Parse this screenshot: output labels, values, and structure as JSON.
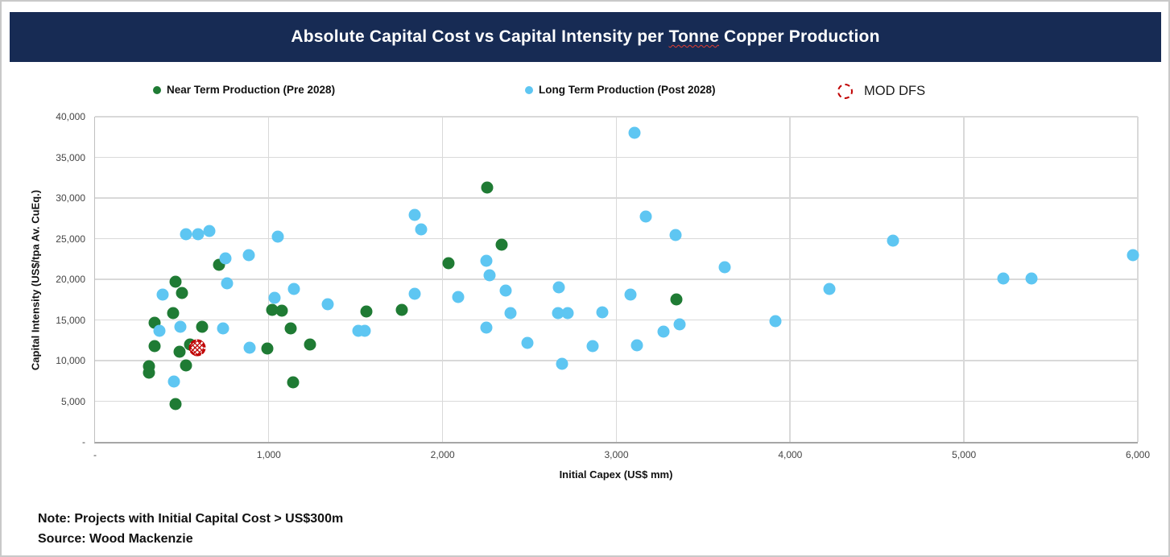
{
  "header": {
    "title_prefix": "Absolute Capital Cost vs Capital Intensity per ",
    "title_highlight": "Tonne",
    "title_suffix": " Copper Production"
  },
  "legend": {
    "near_term_label": "Near Term Production (Pre 2028)",
    "long_term_label": "Long Term Production (Post 2028)",
    "mod_dfs_label": "MOD DFS"
  },
  "colors": {
    "banner_navy": "#172b54",
    "near_term_green": "#1f7b34",
    "long_term_blue": "#5ec6f2",
    "mod_dfs_red": "#c00000",
    "gridline_gray": "#d9d9d9"
  },
  "chart_data": {
    "type": "scatter",
    "title": "Absolute Capital Cost vs Capital Intensity per Tonne Copper Production",
    "xlabel": "Initial Capex (US$ mm)",
    "ylabel": "Capital Intensity (US$/tpa Av. CuEq.)",
    "xlim": [
      0,
      6000
    ],
    "ylim": [
      0,
      40000
    ],
    "grid": true,
    "legend_position": "top",
    "x_ticks": {
      "values": [
        0,
        1000,
        2000,
        3000,
        4000,
        5000,
        6000
      ],
      "labels": [
        "-",
        "1,000",
        "2,000",
        "3,000",
        "4,000",
        "5,000",
        "6,000"
      ]
    },
    "y_ticks": {
      "values": [
        0,
        5000,
        10000,
        15000,
        20000,
        25000,
        30000,
        35000,
        40000
      ],
      "labels": [
        "-",
        "5,000",
        "10,000",
        "15,000",
        "20,000",
        "25,000",
        "30,000",
        "35,000",
        "40,000"
      ]
    },
    "series": [
      {
        "name": "Near Term Production (Pre 2028)",
        "color": "#1f7b34",
        "points": [
          [
            310,
            9300
          ],
          [
            310,
            8500
          ],
          [
            345,
            14700
          ],
          [
            345,
            11800
          ],
          [
            450,
            15800
          ],
          [
            465,
            19700
          ],
          [
            465,
            4700
          ],
          [
            485,
            11100
          ],
          [
            500,
            18300
          ],
          [
            525,
            9400
          ],
          [
            545,
            12000
          ],
          [
            615,
            14200
          ],
          [
            715,
            21800
          ],
          [
            990,
            11500
          ],
          [
            1020,
            16200
          ],
          [
            1075,
            16100
          ],
          [
            1125,
            14000
          ],
          [
            1140,
            7300
          ],
          [
            1235,
            12000
          ],
          [
            1560,
            16000
          ],
          [
            1765,
            16200
          ],
          [
            2035,
            22000
          ],
          [
            2255,
            31300
          ],
          [
            2340,
            24300
          ],
          [
            3345,
            17500
          ]
        ]
      },
      {
        "name": "Long Term Production (Post 2028)",
        "color": "#5ec6f2",
        "points": [
          [
            370,
            13700
          ],
          [
            390,
            18100
          ],
          [
            455,
            7400
          ],
          [
            490,
            14200
          ],
          [
            525,
            25500
          ],
          [
            595,
            25500
          ],
          [
            660,
            25900
          ],
          [
            735,
            14000
          ],
          [
            750,
            22600
          ],
          [
            760,
            19500
          ],
          [
            885,
            23000
          ],
          [
            890,
            11600
          ],
          [
            1035,
            17700
          ],
          [
            1050,
            25200
          ],
          [
            1145,
            18800
          ],
          [
            1340,
            16900
          ],
          [
            1515,
            13700
          ],
          [
            1550,
            13700
          ],
          [
            1840,
            27900
          ],
          [
            1840,
            18200
          ],
          [
            1875,
            26100
          ],
          [
            2090,
            17800
          ],
          [
            2250,
            22300
          ],
          [
            2250,
            14100
          ],
          [
            2270,
            20500
          ],
          [
            2365,
            18600
          ],
          [
            2390,
            15800
          ],
          [
            2490,
            12200
          ],
          [
            2665,
            15800
          ],
          [
            2670,
            19000
          ],
          [
            2685,
            9600
          ],
          [
            2720,
            15800
          ],
          [
            2865,
            11800
          ],
          [
            2920,
            15900
          ],
          [
            3080,
            18100
          ],
          [
            3105,
            38000
          ],
          [
            3120,
            11900
          ],
          [
            3170,
            27700
          ],
          [
            3270,
            13600
          ],
          [
            3340,
            25400
          ],
          [
            3365,
            14500
          ],
          [
            3625,
            21500
          ],
          [
            3915,
            14900
          ],
          [
            4225,
            18800
          ],
          [
            4590,
            24800
          ],
          [
            5225,
            20100
          ],
          [
            5390,
            20100
          ],
          [
            5970,
            23000
          ]
        ]
      },
      {
        "name": "MOD DFS",
        "color": "#c00000",
        "marker": "dashed-circle",
        "points": [
          [
            590,
            11600
          ]
        ]
      }
    ]
  },
  "notes": {
    "line1": "Note: Projects with Initial Capital Cost > US$300m",
    "line2": "Source: Wood Mackenzie"
  }
}
